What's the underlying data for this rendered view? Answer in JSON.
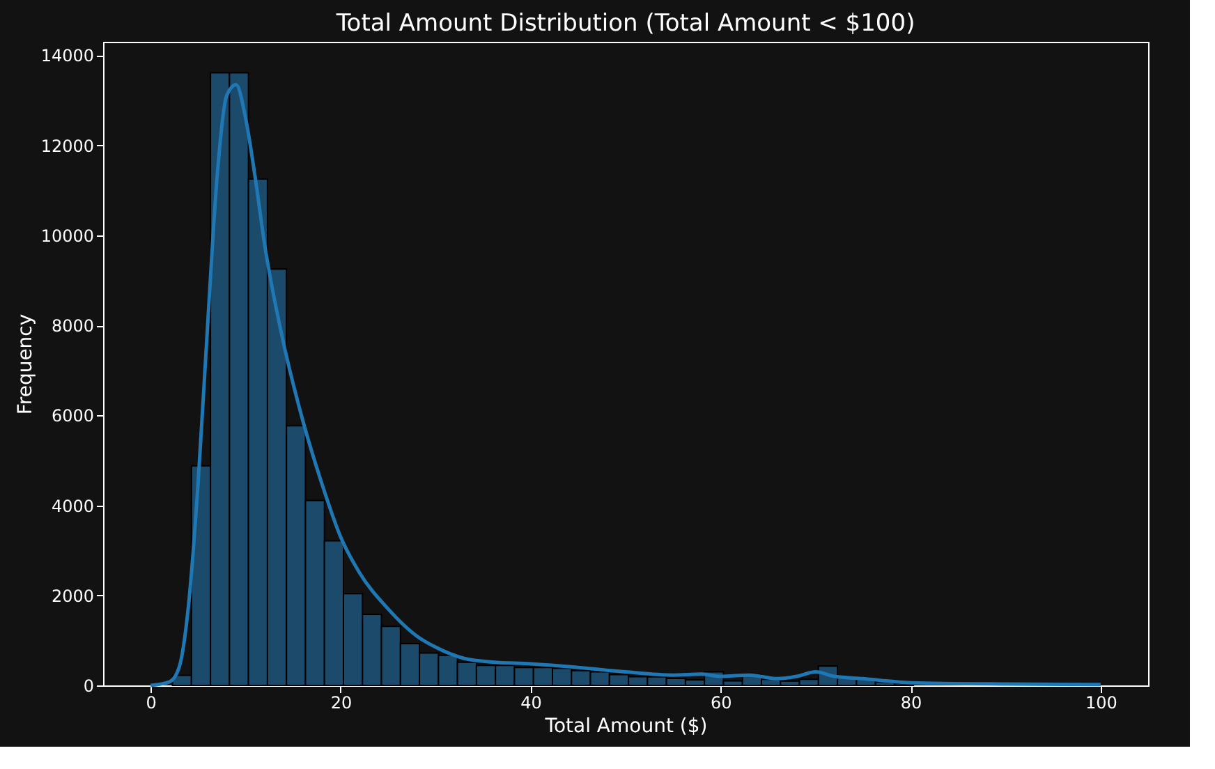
{
  "chart_data": {
    "type": "histogram",
    "title": "Total Amount Distribution (Total Amount < $100)",
    "xlabel": "Total Amount ($)",
    "ylabel": "Frequency",
    "bins": [
      0.3,
      2.3,
      4.3,
      6.3,
      8.3,
      10.3,
      12.3,
      14.3,
      16.3,
      18.3,
      20.3,
      22.3,
      24.3,
      26.3,
      28.3,
      30.3,
      32.3,
      34.3,
      36.3,
      38.3,
      40.3,
      42.3,
      44.3,
      46.3,
      48.3,
      50.3,
      52.3,
      54.3,
      56.3,
      58.3,
      60.3,
      62.3,
      64.3,
      66.3,
      68.3,
      70.3,
      72.3,
      74.3,
      76.3,
      78.3,
      80.3,
      82.3,
      84.3,
      86.3,
      88.3,
      90.3,
      92.3,
      94.3,
      96.3,
      98.3,
      100.3
    ],
    "values": [
      0,
      225,
      4880,
      13610,
      13610,
      11250,
      9250,
      5770,
      4110,
      3210,
      2040,
      1580,
      1310,
      930,
      720,
      670,
      515,
      445,
      445,
      400,
      400,
      380,
      330,
      300,
      240,
      195,
      190,
      155,
      125,
      300,
      100,
      240,
      135,
      95,
      135,
      430,
      175,
      155,
      70,
      40,
      null,
      null,
      null,
      null,
      null,
      null,
      null,
      null,
      null,
      null
    ],
    "color": "#1b4a6b",
    "xlim": [
      -5,
      105
    ],
    "xticks": [
      0,
      20,
      40,
      60,
      80,
      100
    ],
    "ylim": [
      0,
      14300
    ],
    "yticks": [
      0,
      2000,
      4000,
      6000,
      8000,
      10000,
      12000,
      14000
    ],
    "grid": false,
    "series": [
      {
        "type": "line",
        "color": "#1f77b4",
        "x": [
          0,
          2,
          3,
          4,
          5,
          6,
          7,
          8,
          9,
          10,
          11,
          12,
          14,
          16,
          18,
          20,
          22,
          25,
          28,
          30,
          33,
          36,
          40,
          45,
          50,
          55,
          58,
          60,
          63,
          66,
          68,
          70,
          72,
          75,
          80,
          90,
          100
        ],
        "values": [
          0,
          80,
          400,
          1800,
          4500,
          8000,
          11300,
          13100,
          13350,
          12600,
          11300,
          9800,
          7600,
          5900,
          4500,
          3300,
          2500,
          1700,
          1100,
          850,
          600,
          520,
          480,
          400,
          300,
          230,
          250,
          200,
          230,
          150,
          200,
          300,
          200,
          150,
          60,
          30,
          20
        ]
      }
    ]
  }
}
